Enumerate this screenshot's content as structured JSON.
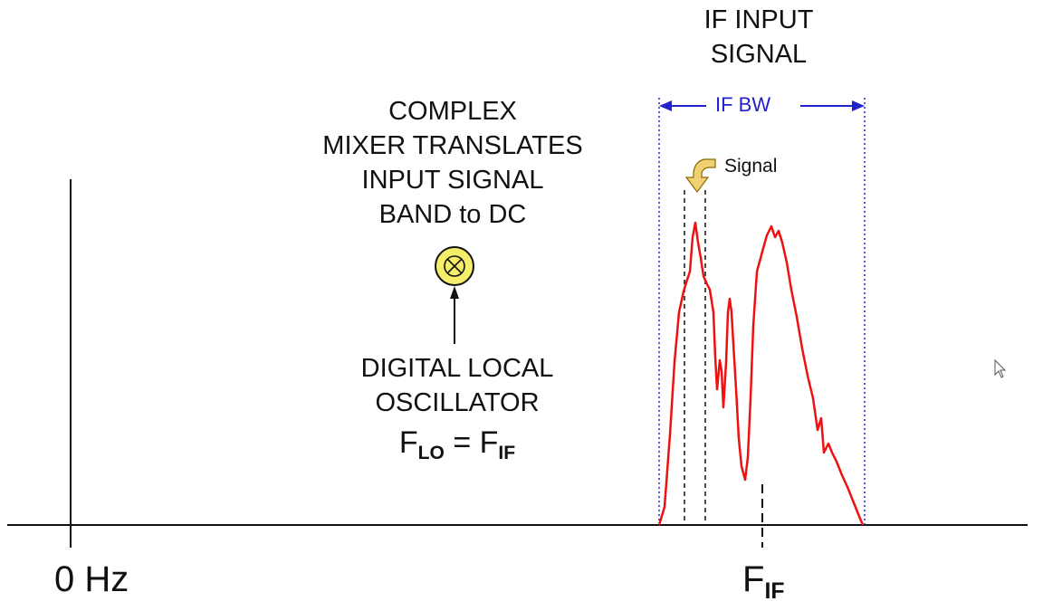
{
  "labels": {
    "if_input_signal": [
      "IF INPUT",
      "SIGNAL"
    ],
    "mixer_text": [
      "COMPLEX",
      "MIXER TRANSLATES",
      "INPUT SIGNAL",
      "BAND to DC"
    ],
    "lo_text": [
      "DIGITAL LOCAL",
      "OSCILLATOR"
    ],
    "flo_eq": {
      "f1": "F",
      "s1": "LO",
      "eq": " = ",
      "f2": "F",
      "s2": "IF"
    },
    "if_bw": "IF BW",
    "signal": "Signal",
    "zero_hz": "0 Hz",
    "fif": {
      "f": "F",
      "sub": "IF"
    }
  },
  "colors": {
    "spectrum": "#ee1111",
    "bw_markers": "#2222cc",
    "mixer_fill": "#f5ee6a",
    "signal_arrow": "#f0d070",
    "axis": "#111111"
  },
  "icons": {
    "mixer": "multiply-circle-icon",
    "signal_pointer": "curved-arrow-icon",
    "cursor": "mouse-pointer-icon"
  }
}
